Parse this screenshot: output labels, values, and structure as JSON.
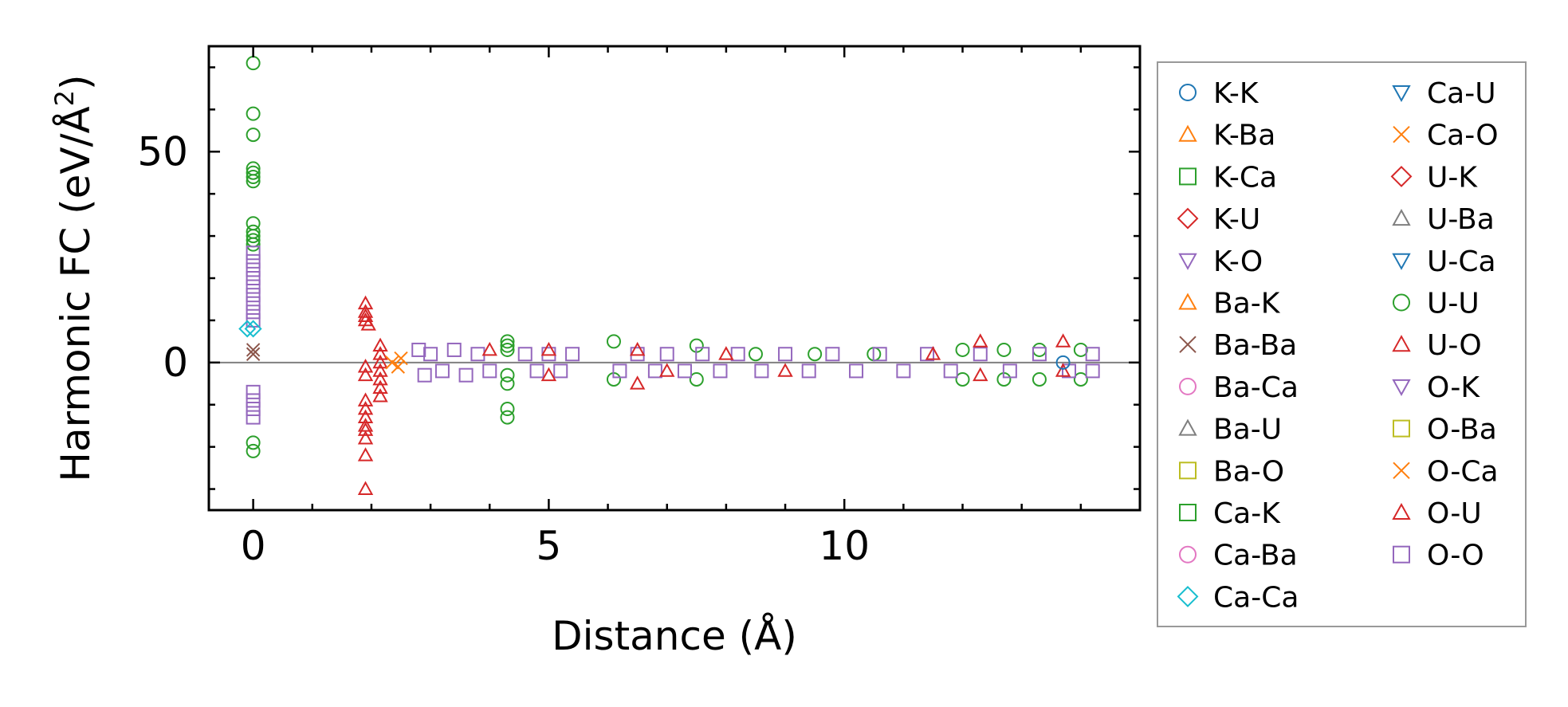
{
  "chart_data": {
    "type": "scatter",
    "title": "",
    "xlabel": "Distance (Å)",
    "ylabel_base": "Harmonic FC (eV/Å",
    "ylabel_sup": "2",
    "ylabel_close": ")",
    "xlim": [
      -0.75,
      15.0
    ],
    "ylim": [
      -35,
      75
    ],
    "xticks": [
      0,
      5,
      10
    ],
    "xtick_labels": [
      "0",
      "5",
      "10"
    ],
    "yticks": [
      0,
      50
    ],
    "ytick_labels": [
      "0",
      "50"
    ],
    "x_minor_step": 1,
    "y_minor_step": 10,
    "zero_line": true,
    "legend_position": "outside-right",
    "legend": [
      {
        "label": "K-K",
        "marker": "circle",
        "color": "#1f77b4"
      },
      {
        "label": "K-Ba",
        "marker": "triangle-up",
        "color": "#ff7f0e"
      },
      {
        "label": "K-Ca",
        "marker": "square",
        "color": "#2ca02c"
      },
      {
        "label": "K-U",
        "marker": "diamond",
        "color": "#d62728"
      },
      {
        "label": "K-O",
        "marker": "triangle-down",
        "color": "#9467bd"
      },
      {
        "label": "Ba-K",
        "marker": "triangle-up",
        "color": "#ff7f0e"
      },
      {
        "label": "Ba-Ba",
        "marker": "x",
        "color": "#8c564b"
      },
      {
        "label": "Ba-Ca",
        "marker": "circle",
        "color": "#e377c2"
      },
      {
        "label": "Ba-U",
        "marker": "triangle-up",
        "color": "#7f7f7f"
      },
      {
        "label": "Ba-O",
        "marker": "square",
        "color": "#bcbd22"
      },
      {
        "label": "Ca-K",
        "marker": "square",
        "color": "#2ca02c"
      },
      {
        "label": "Ca-Ba",
        "marker": "circle",
        "color": "#e377c2"
      },
      {
        "label": "Ca-Ca",
        "marker": "diamond",
        "color": "#17becf"
      },
      {
        "label": "Ca-U",
        "marker": "triangle-down",
        "color": "#1f77b4"
      },
      {
        "label": "Ca-O",
        "marker": "x",
        "color": "#ff7f0e"
      },
      {
        "label": "U-K",
        "marker": "diamond",
        "color": "#d62728"
      },
      {
        "label": "U-Ba",
        "marker": "triangle-up",
        "color": "#7f7f7f"
      },
      {
        "label": "U-Ca",
        "marker": "triangle-down",
        "color": "#1f77b4"
      },
      {
        "label": "U-U",
        "marker": "circle",
        "color": "#2ca02c"
      },
      {
        "label": "U-O",
        "marker": "triangle-up",
        "color": "#d62728"
      },
      {
        "label": "O-K",
        "marker": "triangle-down",
        "color": "#9467bd"
      },
      {
        "label": "O-Ba",
        "marker": "square",
        "color": "#bcbd22"
      },
      {
        "label": "O-Ca",
        "marker": "x",
        "color": "#ff7f0e"
      },
      {
        "label": "O-U",
        "marker": "triangle-up",
        "color": "#d62728"
      },
      {
        "label": "O-O",
        "marker": "square",
        "color": "#9467bd"
      }
    ],
    "series": [
      {
        "name": "U-U",
        "marker": "circle",
        "color": "#2ca02c",
        "points": [
          [
            0,
            71
          ],
          [
            0,
            59
          ],
          [
            0,
            54
          ],
          [
            0,
            46
          ],
          [
            0,
            45
          ],
          [
            0,
            44
          ],
          [
            0,
            43
          ],
          [
            0,
            33
          ],
          [
            0,
            31
          ],
          [
            0,
            30
          ],
          [
            0,
            29
          ],
          [
            0,
            28
          ],
          [
            0,
            -19
          ],
          [
            0,
            -21
          ],
          [
            4.3,
            5
          ],
          [
            4.3,
            4
          ],
          [
            4.3,
            3
          ],
          [
            4.3,
            -3
          ],
          [
            4.3,
            -5
          ],
          [
            4.3,
            -11
          ],
          [
            4.3,
            -13
          ],
          [
            6.1,
            5
          ],
          [
            6.1,
            -4
          ],
          [
            7.5,
            4
          ],
          [
            7.5,
            -4
          ],
          [
            8.5,
            2
          ],
          [
            9.5,
            2
          ],
          [
            10.5,
            2
          ],
          [
            12.0,
            3
          ],
          [
            12.0,
            -4
          ],
          [
            12.7,
            3
          ],
          [
            12.7,
            -4
          ],
          [
            13.3,
            3
          ],
          [
            13.3,
            -4
          ],
          [
            14.0,
            3
          ],
          [
            14.0,
            -4
          ]
        ]
      },
      {
        "name": "O-O",
        "marker": "square",
        "color": "#9467bd",
        "points": [
          [
            0,
            26
          ],
          [
            0,
            24
          ],
          [
            0,
            22
          ],
          [
            0,
            20
          ],
          [
            0,
            18
          ],
          [
            0,
            16
          ],
          [
            0,
            14
          ],
          [
            0,
            12
          ],
          [
            0,
            10
          ],
          [
            0,
            -7
          ],
          [
            0,
            -9
          ],
          [
            0,
            -11
          ],
          [
            0,
            -13
          ],
          [
            2.8,
            3
          ],
          [
            2.9,
            -3
          ],
          [
            3.0,
            2
          ],
          [
            3.2,
            -2
          ],
          [
            3.4,
            3
          ],
          [
            3.6,
            -3
          ],
          [
            3.8,
            2
          ],
          [
            4.0,
            -2
          ],
          [
            4.6,
            2
          ],
          [
            4.8,
            -2
          ],
          [
            5.0,
            2
          ],
          [
            5.2,
            -2
          ],
          [
            5.4,
            2
          ],
          [
            6.2,
            -2
          ],
          [
            6.5,
            2
          ],
          [
            6.8,
            -2
          ],
          [
            7.0,
            2
          ],
          [
            7.3,
            -2
          ],
          [
            7.6,
            2
          ],
          [
            7.9,
            -2
          ],
          [
            8.2,
            2
          ],
          [
            8.6,
            -2
          ],
          [
            9.0,
            2
          ],
          [
            9.4,
            -2
          ],
          [
            9.8,
            2
          ],
          [
            10.2,
            -2
          ],
          [
            10.6,
            2
          ],
          [
            11.0,
            -2
          ],
          [
            11.4,
            2
          ],
          [
            11.8,
            -2
          ],
          [
            12.3,
            2
          ],
          [
            12.8,
            -2
          ],
          [
            13.3,
            2
          ],
          [
            13.8,
            -2
          ],
          [
            14.2,
            2
          ],
          [
            14.2,
            -2
          ]
        ]
      },
      {
        "name": "O-U",
        "marker": "triangle-up",
        "color": "#d62728",
        "points": [
          [
            1.9,
            14
          ],
          [
            1.9,
            12
          ],
          [
            1.9,
            11
          ],
          [
            1.9,
            10
          ],
          [
            1.95,
            9
          ],
          [
            1.9,
            -1
          ],
          [
            1.9,
            -3
          ],
          [
            1.9,
            -9
          ],
          [
            1.9,
            -11
          ],
          [
            1.9,
            -13
          ],
          [
            1.9,
            -15
          ],
          [
            1.9,
            -16
          ],
          [
            1.9,
            -18
          ],
          [
            1.9,
            -22
          ],
          [
            1.9,
            -30
          ],
          [
            2.15,
            4
          ],
          [
            2.15,
            2
          ],
          [
            2.15,
            0
          ],
          [
            2.15,
            -2
          ],
          [
            2.15,
            -4
          ],
          [
            2.15,
            -6
          ],
          [
            2.15,
            -8
          ],
          [
            4.0,
            3
          ],
          [
            5.0,
            3
          ],
          [
            5.0,
            -3
          ],
          [
            6.5,
            -5
          ],
          [
            6.5,
            3
          ],
          [
            7.0,
            -2
          ],
          [
            8.0,
            2
          ],
          [
            9.0,
            -2
          ],
          [
            11.5,
            2
          ],
          [
            12.3,
            -3
          ],
          [
            12.3,
            5
          ],
          [
            13.7,
            5
          ],
          [
            13.7,
            -2
          ]
        ]
      },
      {
        "name": "Ca-Ca",
        "marker": "diamond",
        "color": "#17becf",
        "points": [
          [
            0,
            8
          ],
          [
            -0.1,
            8
          ]
        ]
      },
      {
        "name": "O-Ca",
        "marker": "x",
        "color": "#ff7f0e",
        "points": [
          [
            2.35,
            0
          ],
          [
            2.45,
            -1
          ],
          [
            2.5,
            1
          ]
        ]
      },
      {
        "name": "K-K",
        "marker": "circle",
        "color": "#1f77b4",
        "points": [
          [
            13.7,
            0
          ]
        ]
      },
      {
        "name": "Ba-Ba",
        "marker": "x",
        "color": "#8c564b",
        "points": [
          [
            0,
            3
          ],
          [
            0,
            2
          ]
        ]
      }
    ]
  }
}
